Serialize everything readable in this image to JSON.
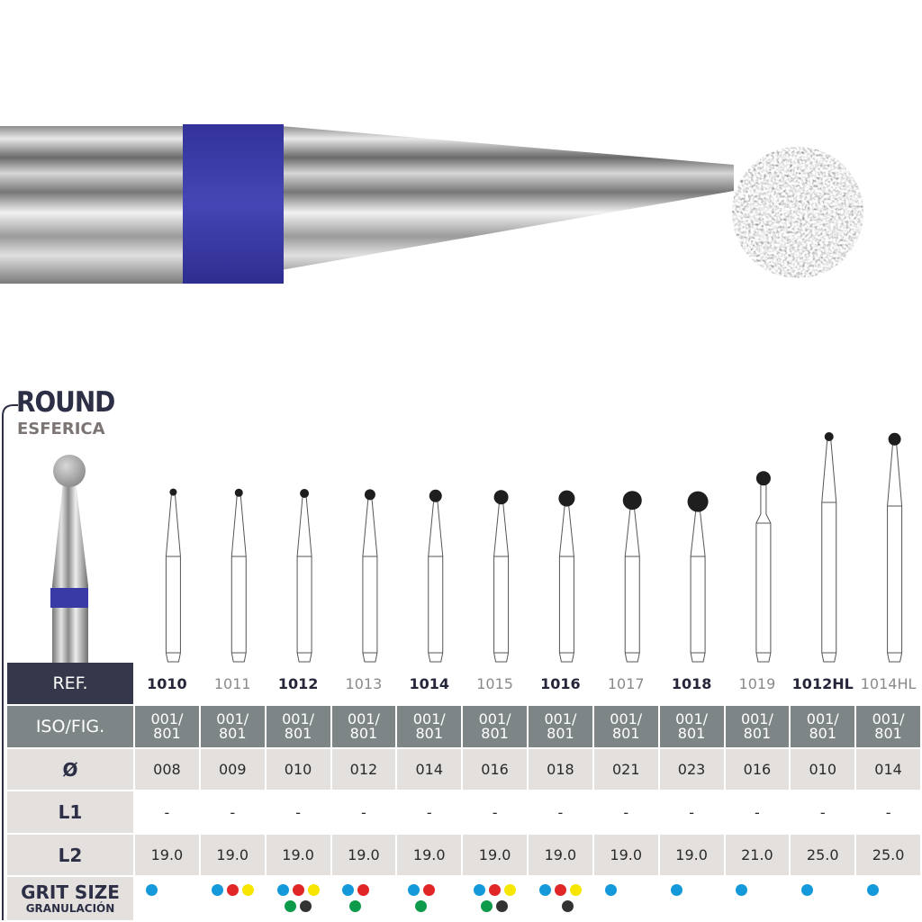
{
  "title": "ROUND",
  "subtitle": "ESFERICA",
  "row_labels": {
    "ref": "REF.",
    "iso": "ISO/FIG.",
    "diameter": "Ø",
    "l1": "L1",
    "l2": "L2",
    "grit": "GRIT SIZE",
    "grit_sub": "GRANULACIÓN"
  },
  "band_color": "#3a3aa6",
  "grit_colors": {
    "blue": "#1499da",
    "red": "#e02626",
    "yellow": "#f6e600",
    "green": "#0d9a4b",
    "black": "#333333"
  },
  "products": [
    {
      "ref": "1010",
      "iso": [
        "001/",
        "801"
      ],
      "diameter": "008",
      "l1": "-",
      "l2": "19.0",
      "grit": [
        "blue"
      ]
    },
    {
      "ref": "1011",
      "iso": [
        "001/",
        "801"
      ],
      "diameter": "009",
      "l1": "-",
      "l2": "19.0",
      "grit": [
        "blue",
        "red",
        "yellow"
      ]
    },
    {
      "ref": "1012",
      "iso": [
        "001/",
        "801"
      ],
      "diameter": "010",
      "l1": "-",
      "l2": "19.0",
      "grit": [
        "blue",
        "red",
        "yellow",
        "green",
        "black"
      ]
    },
    {
      "ref": "1013",
      "iso": [
        "001/",
        "801"
      ],
      "diameter": "012",
      "l1": "-",
      "l2": "19.0",
      "grit": [
        "blue",
        "red",
        "green"
      ]
    },
    {
      "ref": "1014",
      "iso": [
        "001/",
        "801"
      ],
      "diameter": "014",
      "l1": "-",
      "l2": "19.0",
      "grit": [
        "blue",
        "red",
        "green"
      ]
    },
    {
      "ref": "1015",
      "iso": [
        "001/",
        "801"
      ],
      "diameter": "016",
      "l1": "-",
      "l2": "19.0",
      "grit": [
        "blue",
        "red",
        "yellow",
        "green",
        "black"
      ]
    },
    {
      "ref": "1016",
      "iso": [
        "001/",
        "801"
      ],
      "diameter": "018",
      "l1": "-",
      "l2": "19.0",
      "grit": [
        "blue",
        "red",
        "yellow",
        "black"
      ]
    },
    {
      "ref": "1017",
      "iso": [
        "001/",
        "801"
      ],
      "diameter": "021",
      "l1": "-",
      "l2": "19.0",
      "grit": [
        "blue"
      ]
    },
    {
      "ref": "1018",
      "iso": [
        "001/",
        "801"
      ],
      "diameter": "023",
      "l1": "-",
      "l2": "19.0",
      "grit": [
        "blue"
      ]
    },
    {
      "ref": "1019",
      "iso": [
        "001/",
        "801"
      ],
      "diameter": "016",
      "l1": "-",
      "l2": "21.0",
      "grit": [
        "blue"
      ]
    },
    {
      "ref": "1012HL",
      "iso": [
        "001/",
        "801"
      ],
      "diameter": "010",
      "l1": "-",
      "l2": "25.0",
      "grit": [
        "blue"
      ]
    },
    {
      "ref": "1014HL",
      "iso": [
        "001/",
        "801"
      ],
      "diameter": "014",
      "l1": "-",
      "l2": "25.0",
      "grit": [
        "blue"
      ]
    }
  ]
}
